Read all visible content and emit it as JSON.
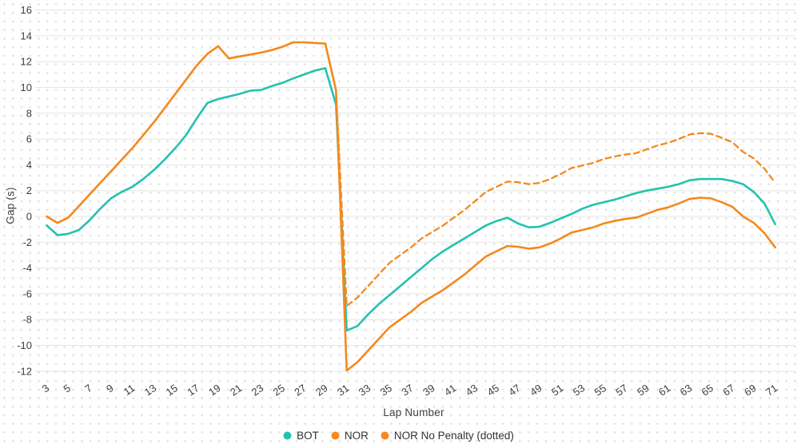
{
  "chart_data": {
    "type": "line",
    "title": "",
    "xlabel": "Lap Number",
    "ylabel": "Gap (s)",
    "ylim": [
      -12,
      16
    ],
    "y_tick_step": 2,
    "grid": "dotted background with solid horizontal gridlines",
    "legend_position": "bottom-center",
    "x_ticks": [
      3,
      5,
      7,
      9,
      11,
      13,
      15,
      17,
      19,
      21,
      23,
      25,
      27,
      29,
      31,
      33,
      35,
      37,
      39,
      41,
      43,
      45,
      47,
      49,
      51,
      53,
      55,
      57,
      59,
      61,
      63,
      65,
      67,
      69,
      71
    ],
    "x": [
      3,
      4,
      5,
      6,
      7,
      8,
      9,
      10,
      11,
      12,
      13,
      14,
      15,
      16,
      17,
      18,
      19,
      20,
      21,
      22,
      23,
      24,
      25,
      26,
      27,
      28,
      29,
      30,
      31,
      32,
      33,
      34,
      35,
      36,
      37,
      38,
      39,
      40,
      41,
      42,
      43,
      44,
      45,
      46,
      47,
      48,
      49,
      50,
      51,
      52,
      53,
      54,
      55,
      56,
      57,
      58,
      59,
      60,
      61,
      62,
      63,
      64,
      65,
      66,
      67,
      68,
      69,
      70,
      71
    ],
    "series": [
      {
        "name": "BOT",
        "color": "#24c2ae",
        "style": "solid",
        "values": [
          -0.7,
          -1.45,
          -1.35,
          -1.05,
          -0.3,
          0.6,
          1.4,
          1.9,
          2.3,
          2.9,
          3.6,
          4.4,
          5.3,
          6.3,
          7.6,
          8.8,
          9.1,
          9.3,
          9.5,
          9.75,
          9.8,
          10.1,
          10.35,
          10.7,
          11.0,
          11.3,
          11.5,
          8.7,
          -8.85,
          -8.5,
          -7.6,
          -6.8,
          -6.1,
          -5.4,
          -4.7,
          -4.0,
          -3.3,
          -2.7,
          -2.2,
          -1.7,
          -1.2,
          -0.7,
          -0.35,
          -0.1,
          -0.55,
          -0.85,
          -0.8,
          -0.5,
          -0.15,
          0.2,
          0.6,
          0.9,
          1.1,
          1.3,
          1.55,
          1.8,
          2.0,
          2.15,
          2.3,
          2.5,
          2.8,
          2.9,
          2.9,
          2.9,
          2.75,
          2.5,
          1.9,
          1.0,
          -0.6
        ]
      },
      {
        "name": "NOR",
        "color": "#f5891d",
        "style": "solid",
        "values": [
          0.0,
          -0.5,
          -0.1,
          0.8,
          1.7,
          2.6,
          3.5,
          4.4,
          5.3,
          6.3,
          7.3,
          8.4,
          9.5,
          10.6,
          11.7,
          12.6,
          13.2,
          12.25,
          12.4,
          12.55,
          12.7,
          12.9,
          13.15,
          13.5,
          13.5,
          13.45,
          13.4,
          9.8,
          -11.95,
          -11.3,
          -10.4,
          -9.5,
          -8.6,
          -8.0,
          -7.4,
          -6.7,
          -6.2,
          -5.7,
          -5.1,
          -4.5,
          -3.8,
          -3.1,
          -2.7,
          -2.3,
          -2.35,
          -2.5,
          -2.4,
          -2.1,
          -1.7,
          -1.25,
          -1.05,
          -0.85,
          -0.55,
          -0.35,
          -0.2,
          -0.1,
          0.2,
          0.5,
          0.7,
          1.0,
          1.35,
          1.45,
          1.4,
          1.1,
          0.75,
          0.0,
          -0.5,
          -1.3,
          -2.4
        ]
      },
      {
        "name": "NOR No Penalty (dotted)",
        "color": "#f5891d",
        "style": "dashed",
        "values": [
          0.0,
          -0.5,
          -0.1,
          0.8,
          1.7,
          2.6,
          3.5,
          4.4,
          5.3,
          6.3,
          7.3,
          8.4,
          9.5,
          10.6,
          11.7,
          12.6,
          13.2,
          12.25,
          12.4,
          12.55,
          12.7,
          12.9,
          13.15,
          13.5,
          13.5,
          13.45,
          13.4,
          9.8,
          -6.95,
          -6.3,
          -5.4,
          -4.5,
          -3.6,
          -3.0,
          -2.4,
          -1.7,
          -1.2,
          -0.7,
          -0.1,
          0.5,
          1.2,
          1.9,
          2.3,
          2.7,
          2.65,
          2.5,
          2.6,
          2.9,
          3.3,
          3.75,
          3.95,
          4.15,
          4.45,
          4.65,
          4.8,
          4.9,
          5.2,
          5.5,
          5.7,
          6.0,
          6.35,
          6.45,
          6.4,
          6.1,
          5.75,
          5.0,
          4.5,
          3.7,
          2.6
        ]
      }
    ]
  },
  "style": {
    "grid_line_color": "#e4e4e4",
    "dot_grid_color": "#dcdcdc",
    "tick_text_color": "#3f3f3f"
  }
}
